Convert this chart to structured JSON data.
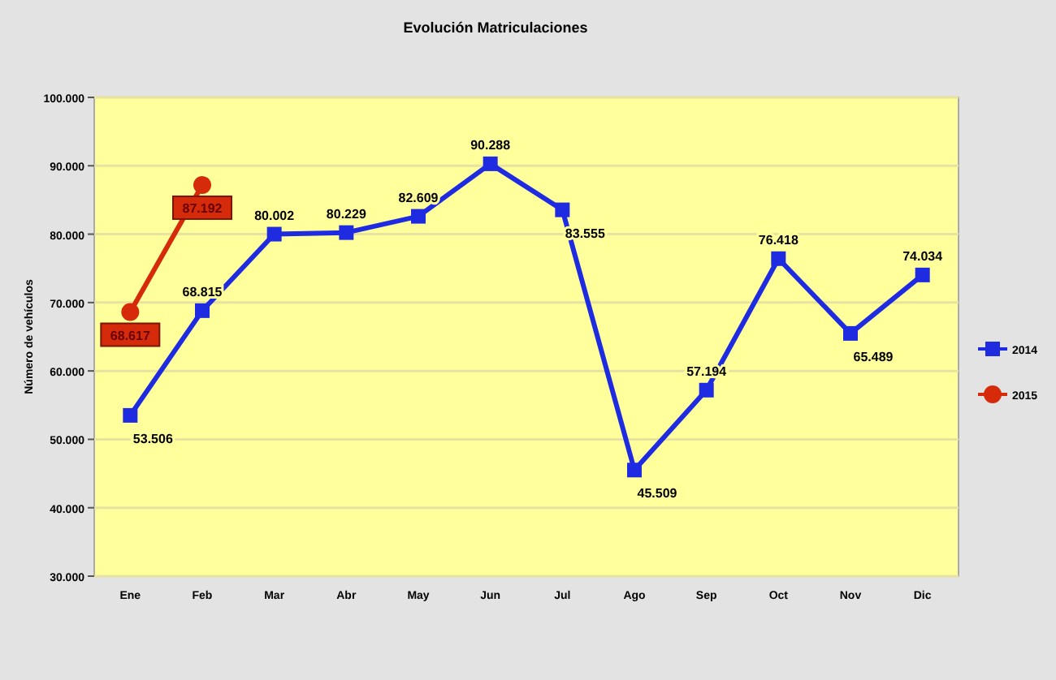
{
  "chart_data": {
    "type": "line",
    "title": "Evolución  Matriculaciones",
    "ylabel": "Número de vehículos",
    "categories": [
      "Ene",
      "Feb",
      "Mar",
      "Abr",
      "May",
      "Jun",
      "Jul",
      "Ago",
      "Sep",
      "Oct",
      "Nov",
      "Dic"
    ],
    "series": [
      {
        "name": "2014",
        "color": "#1f2be0",
        "marker": "square",
        "values": [
          53506,
          68815,
          80002,
          80229,
          82609,
          90288,
          83555,
          45509,
          57194,
          76418,
          65489,
          74034
        ],
        "value_labels": [
          "53.506",
          "68.815",
          "80.002",
          "80.229",
          "82.609",
          "90.288",
          "83.555",
          "45.509",
          "57.194",
          "76.418",
          "65.489",
          "74.034"
        ]
      },
      {
        "name": "2015",
        "color": "#d62b0a",
        "marker": "circle",
        "values": [
          68617,
          87192,
          null,
          null,
          null,
          null,
          null,
          null,
          null,
          null,
          null,
          null
        ],
        "value_labels": [
          "68.617",
          "87.192",
          null,
          null,
          null,
          null,
          null,
          null,
          null,
          null,
          null,
          null
        ]
      }
    ],
    "ylim": [
      30000,
      100000
    ],
    "yticks": [
      {
        "value": 30000,
        "label": "30.000"
      },
      {
        "value": 40000,
        "label": "40.000"
      },
      {
        "value": 50000,
        "label": "50.000"
      },
      {
        "value": 60000,
        "label": "60.000"
      },
      {
        "value": 70000,
        "label": "70.000"
      },
      {
        "value": 80000,
        "label": "80.000"
      },
      {
        "value": 90000,
        "label": "90.000"
      },
      {
        "value": 100000,
        "label": "100.000"
      }
    ],
    "grid": "y",
    "legend": "right"
  }
}
